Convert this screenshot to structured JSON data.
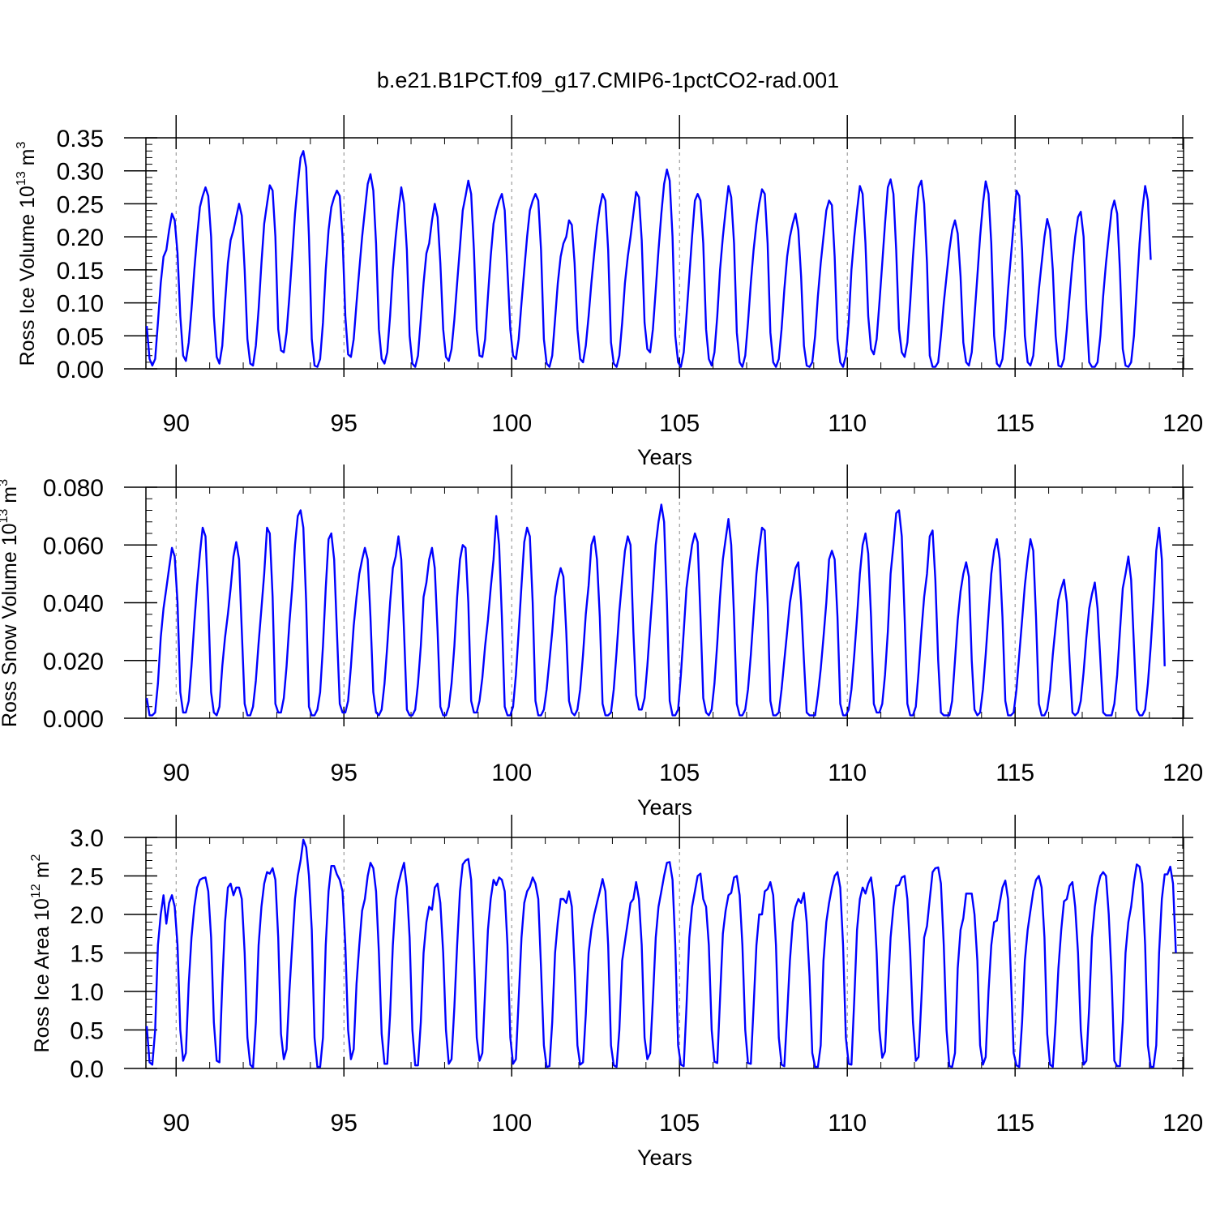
{
  "figure": {
    "title": "b.e21.B1PCT.f09_g17.CMIP6-1pctCO2-rad.001"
  },
  "chart_data": [
    {
      "type": "line",
      "name": "ice-volume",
      "xlabel": "Years",
      "ylabel_main": "Ross Ice Volume 10",
      "ylabel_exp": "13",
      "ylabel_unit": " m",
      "ylabel_unit_exp": "3",
      "xlim": [
        89.1,
        120.02
      ],
      "ylim": [
        0,
        0.35
      ],
      "x_ticks": [
        90,
        95,
        100,
        105,
        110,
        115,
        120
      ],
      "x_tick_labels": [
        "90",
        "95",
        "100",
        "105",
        "110",
        "115",
        "120"
      ],
      "y_ticks": [
        0,
        0.05,
        0.1,
        0.15,
        0.2,
        0.25,
        0.3,
        0.35
      ],
      "y_tick_labels": [
        "0.00",
        "0.05",
        "0.10",
        "0.15",
        "0.20",
        "0.25",
        "0.30",
        "0.35"
      ],
      "x_start": 89.125,
      "x_step": 0.08333,
      "color": "#0000ff",
      "values": [
        0.065,
        0.015,
        0.005,
        0.015,
        0.07,
        0.13,
        0.17,
        0.18,
        0.21,
        0.235,
        0.225,
        0.175,
        0.08,
        0.02,
        0.012,
        0.04,
        0.09,
        0.15,
        0.2,
        0.245,
        0.262,
        0.275,
        0.262,
        0.2,
        0.08,
        0.018,
        0.008,
        0.035,
        0.1,
        0.16,
        0.195,
        0.21,
        0.23,
        0.25,
        0.232,
        0.15,
        0.045,
        0.008,
        0.005,
        0.035,
        0.09,
        0.16,
        0.22,
        0.25,
        0.278,
        0.27,
        0.2,
        0.06,
        0.028,
        0.025,
        0.055,
        0.11,
        0.17,
        0.235,
        0.28,
        0.32,
        0.33,
        0.305,
        0.2,
        0.045,
        0.005,
        0.003,
        0.015,
        0.07,
        0.15,
        0.21,
        0.245,
        0.26,
        0.27,
        0.262,
        0.2,
        0.08,
        0.022,
        0.018,
        0.045,
        0.1,
        0.15,
        0.2,
        0.24,
        0.28,
        0.295,
        0.27,
        0.19,
        0.06,
        0.015,
        0.008,
        0.025,
        0.08,
        0.15,
        0.2,
        0.24,
        0.275,
        0.25,
        0.18,
        0.05,
        0.008,
        0.003,
        0.02,
        0.075,
        0.13,
        0.175,
        0.19,
        0.225,
        0.25,
        0.23,
        0.16,
        0.06,
        0.018,
        0.012,
        0.03,
        0.075,
        0.13,
        0.185,
        0.24,
        0.262,
        0.285,
        0.265,
        0.18,
        0.06,
        0.02,
        0.018,
        0.045,
        0.11,
        0.17,
        0.22,
        0.24,
        0.255,
        0.265,
        0.24,
        0.15,
        0.06,
        0.02,
        0.015,
        0.045,
        0.1,
        0.15,
        0.2,
        0.24,
        0.255,
        0.265,
        0.255,
        0.18,
        0.045,
        0.008,
        0.003,
        0.02,
        0.075,
        0.13,
        0.17,
        0.19,
        0.2,
        0.225,
        0.218,
        0.16,
        0.06,
        0.015,
        0.01,
        0.035,
        0.08,
        0.13,
        0.175,
        0.215,
        0.245,
        0.265,
        0.255,
        0.18,
        0.04,
        0.008,
        0.003,
        0.02,
        0.07,
        0.13,
        0.17,
        0.2,
        0.235,
        0.268,
        0.26,
        0.195,
        0.07,
        0.03,
        0.025,
        0.06,
        0.12,
        0.18,
        0.235,
        0.28,
        0.302,
        0.285,
        0.2,
        0.05,
        0.01,
        0.003,
        0.025,
        0.08,
        0.14,
        0.2,
        0.255,
        0.265,
        0.255,
        0.19,
        0.06,
        0.015,
        0.005,
        0.025,
        0.08,
        0.15,
        0.2,
        0.24,
        0.277,
        0.26,
        0.19,
        0.055,
        0.01,
        0.003,
        0.02,
        0.07,
        0.13,
        0.18,
        0.22,
        0.25,
        0.272,
        0.265,
        0.19,
        0.055,
        0.01,
        0.003,
        0.015,
        0.06,
        0.12,
        0.17,
        0.2,
        0.22,
        0.235,
        0.21,
        0.14,
        0.035,
        0.005,
        0.003,
        0.01,
        0.05,
        0.11,
        0.16,
        0.2,
        0.24,
        0.255,
        0.248,
        0.17,
        0.045,
        0.01,
        0.003,
        0.02,
        0.07,
        0.15,
        0.2,
        0.24,
        0.277,
        0.265,
        0.19,
        0.08,
        0.03,
        0.022,
        0.045,
        0.1,
        0.16,
        0.22,
        0.275,
        0.287,
        0.265,
        0.18,
        0.06,
        0.025,
        0.018,
        0.04,
        0.1,
        0.17,
        0.23,
        0.275,
        0.285,
        0.25,
        0.16,
        0.02,
        0.003,
        0.003,
        0.01,
        0.05,
        0.1,
        0.14,
        0.18,
        0.21,
        0.225,
        0.205,
        0.14,
        0.04,
        0.01,
        0.005,
        0.025,
        0.08,
        0.14,
        0.2,
        0.25,
        0.284,
        0.265,
        0.19,
        0.05,
        0.008,
        0.003,
        0.015,
        0.06,
        0.12,
        0.17,
        0.22,
        0.27,
        0.262,
        0.18,
        0.05,
        0.01,
        0.005,
        0.02,
        0.07,
        0.12,
        0.16,
        0.2,
        0.227,
        0.21,
        0.15,
        0.05,
        0.005,
        0.003,
        0.015,
        0.06,
        0.11,
        0.16,
        0.2,
        0.23,
        0.238,
        0.2,
        0.09,
        0.01,
        0.003,
        0.003,
        0.01,
        0.05,
        0.11,
        0.16,
        0.2,
        0.24,
        0.255,
        0.235,
        0.15,
        0.03,
        0.005,
        0.003,
        0.01,
        0.05,
        0.12,
        0.19,
        0.24,
        0.277,
        0.255,
        0.165
      ]
    },
    {
      "type": "line",
      "name": "snow-volume",
      "xlabel": "Years",
      "ylabel_main": "Ross Snow Volume 10",
      "ylabel_exp": "13",
      "ylabel_unit": " m",
      "ylabel_unit_exp": "3",
      "xlim": [
        89.1,
        120.02
      ],
      "ylim": [
        0,
        0.08
      ],
      "x_ticks": [
        90,
        95,
        100,
        105,
        110,
        115,
        120
      ],
      "x_tick_labels": [
        "90",
        "95",
        "100",
        "105",
        "110",
        "115",
        "120"
      ],
      "y_ticks": [
        0,
        0.02,
        0.04,
        0.06,
        0.08
      ],
      "y_tick_labels": [
        "0.000",
        "0.020",
        "0.040",
        "0.060",
        "0.080"
      ],
      "x_start": 89.125,
      "x_step": 0.08333,
      "color": "#0000ff",
      "values": [
        0.007,
        0.001,
        0.001,
        0.002,
        0.012,
        0.028,
        0.038,
        0.045,
        0.052,
        0.059,
        0.056,
        0.04,
        0.009,
        0.002,
        0.002,
        0.006,
        0.018,
        0.033,
        0.046,
        0.057,
        0.066,
        0.063,
        0.04,
        0.009,
        0.002,
        0.001,
        0.004,
        0.018,
        0.028,
        0.036,
        0.045,
        0.056,
        0.061,
        0.055,
        0.03,
        0.005,
        0.001,
        0.001,
        0.004,
        0.013,
        0.026,
        0.038,
        0.05,
        0.066,
        0.064,
        0.042,
        0.005,
        0.002,
        0.002,
        0.007,
        0.018,
        0.033,
        0.045,
        0.06,
        0.07,
        0.072,
        0.066,
        0.04,
        0.004,
        0.001,
        0.001,
        0.003,
        0.009,
        0.025,
        0.045,
        0.062,
        0.064,
        0.055,
        0.03,
        0.005,
        0.002,
        0.002,
        0.006,
        0.018,
        0.032,
        0.042,
        0.05,
        0.055,
        0.059,
        0.055,
        0.035,
        0.009,
        0.002,
        0.001,
        0.003,
        0.012,
        0.025,
        0.04,
        0.052,
        0.056,
        0.063,
        0.055,
        0.03,
        0.003,
        0.001,
        0.001,
        0.003,
        0.012,
        0.025,
        0.042,
        0.047,
        0.055,
        0.059,
        0.052,
        0.03,
        0.004,
        0.001,
        0.001,
        0.004,
        0.012,
        0.025,
        0.042,
        0.055,
        0.06,
        0.059,
        0.04,
        0.006,
        0.002,
        0.002,
        0.006,
        0.014,
        0.025,
        0.034,
        0.045,
        0.055,
        0.07,
        0.06,
        0.035,
        0.004,
        0.001,
        0.001,
        0.004,
        0.015,
        0.03,
        0.046,
        0.061,
        0.066,
        0.063,
        0.04,
        0.006,
        0.001,
        0.001,
        0.003,
        0.01,
        0.02,
        0.03,
        0.042,
        0.048,
        0.052,
        0.049,
        0.03,
        0.006,
        0.002,
        0.001,
        0.003,
        0.01,
        0.022,
        0.036,
        0.046,
        0.06,
        0.063,
        0.055,
        0.035,
        0.005,
        0.001,
        0.001,
        0.002,
        0.01,
        0.023,
        0.037,
        0.048,
        0.058,
        0.063,
        0.06,
        0.03,
        0.008,
        0.003,
        0.003,
        0.007,
        0.018,
        0.032,
        0.045,
        0.06,
        0.068,
        0.074,
        0.068,
        0.04,
        0.006,
        0.001,
        0.001,
        0.003,
        0.015,
        0.03,
        0.045,
        0.053,
        0.06,
        0.064,
        0.061,
        0.035,
        0.007,
        0.002,
        0.001,
        0.003,
        0.012,
        0.026,
        0.042,
        0.055,
        0.062,
        0.069,
        0.06,
        0.035,
        0.005,
        0.001,
        0.001,
        0.003,
        0.01,
        0.022,
        0.036,
        0.05,
        0.059,
        0.066,
        0.065,
        0.04,
        0.006,
        0.001,
        0.001,
        0.002,
        0.01,
        0.02,
        0.03,
        0.04,
        0.046,
        0.052,
        0.054,
        0.04,
        0.02,
        0.002,
        0.001,
        0.001,
        0.001,
        0.008,
        0.017,
        0.028,
        0.04,
        0.055,
        0.058,
        0.055,
        0.035,
        0.005,
        0.001,
        0.001,
        0.003,
        0.01,
        0.022,
        0.035,
        0.05,
        0.06,
        0.064,
        0.057,
        0.035,
        0.005,
        0.002,
        0.002,
        0.005,
        0.015,
        0.03,
        0.05,
        0.06,
        0.071,
        0.072,
        0.063,
        0.035,
        0.005,
        0.001,
        0.001,
        0.004,
        0.016,
        0.03,
        0.042,
        0.05,
        0.063,
        0.065,
        0.048,
        0.02,
        0.002,
        0.001,
        0.001,
        0.001,
        0.006,
        0.02,
        0.034,
        0.044,
        0.05,
        0.054,
        0.049,
        0.02,
        0.003,
        0.001,
        0.002,
        0.01,
        0.022,
        0.036,
        0.05,
        0.058,
        0.062,
        0.055,
        0.035,
        0.006,
        0.001,
        0.001,
        0.002,
        0.01,
        0.022,
        0.034,
        0.046,
        0.055,
        0.062,
        0.058,
        0.035,
        0.005,
        0.001,
        0.001,
        0.003,
        0.01,
        0.022,
        0.032,
        0.041,
        0.045,
        0.048,
        0.04,
        0.02,
        0.002,
        0.001,
        0.002,
        0.006,
        0.016,
        0.028,
        0.038,
        0.043,
        0.047,
        0.038,
        0.02,
        0.002,
        0.001,
        0.001,
        0.001,
        0.005,
        0.015,
        0.03,
        0.045,
        0.05,
        0.056,
        0.048,
        0.025,
        0.003,
        0.001,
        0.001,
        0.003,
        0.012,
        0.025,
        0.04,
        0.058,
        0.066,
        0.055,
        0.018
      ]
    },
    {
      "type": "line",
      "name": "ice-area",
      "xlabel": "Years",
      "ylabel_main": "Ross Ice Area 10",
      "ylabel_exp": "12",
      "ylabel_unit": " m",
      "ylabel_unit_exp": "2",
      "xlim": [
        89.1,
        120.02
      ],
      "ylim": [
        0,
        3.0
      ],
      "x_ticks": [
        90,
        95,
        100,
        105,
        110,
        115,
        120
      ],
      "x_tick_labels": [
        "90",
        "95",
        "100",
        "105",
        "110",
        "115",
        "120"
      ],
      "y_ticks": [
        0,
        0.5,
        1.0,
        1.5,
        2.0,
        2.5,
        3.0
      ],
      "y_tick_labels": [
        "0.0",
        "0.5",
        "1.0",
        "1.5",
        "2.0",
        "2.5",
        "3.0"
      ],
      "x_start": 89.125,
      "x_step": 0.08333,
      "color": "#0000ff",
      "values": [
        0.55,
        0.08,
        0.05,
        0.5,
        1.6,
        2.0,
        2.25,
        1.88,
        2.15,
        2.25,
        2.1,
        1.6,
        0.5,
        0.1,
        0.2,
        1.1,
        1.7,
        2.1,
        2.35,
        2.45,
        2.47,
        2.48,
        2.3,
        1.7,
        0.6,
        0.1,
        0.08,
        1.1,
        1.9,
        2.35,
        2.4,
        2.25,
        2.35,
        2.35,
        2.2,
        1.5,
        0.4,
        0.05,
        0.01,
        0.6,
        1.6,
        2.1,
        2.4,
        2.55,
        2.53,
        2.6,
        2.45,
        1.7,
        0.45,
        0.12,
        0.25,
        1.0,
        1.6,
        2.2,
        2.5,
        2.7,
        2.97,
        2.87,
        2.5,
        1.8,
        0.4,
        0.02,
        0.02,
        0.4,
        1.6,
        2.3,
        2.63,
        2.63,
        2.52,
        2.45,
        2.3,
        1.6,
        0.5,
        0.12,
        0.25,
        1.1,
        1.6,
        2.05,
        2.2,
        2.5,
        2.67,
        2.6,
        2.3,
        1.5,
        0.45,
        0.06,
        0.06,
        0.7,
        1.6,
        2.2,
        2.4,
        2.55,
        2.67,
        2.35,
        1.7,
        0.5,
        0.04,
        0.04,
        0.6,
        1.5,
        1.9,
        2.1,
        2.06,
        2.35,
        2.4,
        2.15,
        1.5,
        0.5,
        0.06,
        0.12,
        0.8,
        1.6,
        2.3,
        2.65,
        2.7,
        2.72,
        2.45,
        1.5,
        0.4,
        0.1,
        0.2,
        1.0,
        1.8,
        2.2,
        2.45,
        2.38,
        2.48,
        2.45,
        2.3,
        1.6,
        0.4,
        0.06,
        0.12,
        0.9,
        1.7,
        2.15,
        2.3,
        2.36,
        2.48,
        2.4,
        2.2,
        1.3,
        0.3,
        0.02,
        0.03,
        0.6,
        1.5,
        1.9,
        2.2,
        2.2,
        2.15,
        2.3,
        2.1,
        1.3,
        0.3,
        0.05,
        0.08,
        0.7,
        1.5,
        1.8,
        2.0,
        2.15,
        2.3,
        2.46,
        2.3,
        1.6,
        0.3,
        0.04,
        0.02,
        0.5,
        1.4,
        1.65,
        1.9,
        2.15,
        2.2,
        2.42,
        2.2,
        1.6,
        0.4,
        0.12,
        0.2,
        0.9,
        1.7,
        2.1,
        2.3,
        2.5,
        2.67,
        2.68,
        2.45,
        1.6,
        0.3,
        0.05,
        0.03,
        0.8,
        1.7,
        2.1,
        2.3,
        2.5,
        2.53,
        2.2,
        2.1,
        1.6,
        0.5,
        0.09,
        0.07,
        0.9,
        1.75,
        2.05,
        2.25,
        2.28,
        2.48,
        2.5,
        2.25,
        1.6,
        0.5,
        0.07,
        0.06,
        0.8,
        1.6,
        2.0,
        2.0,
        2.3,
        2.33,
        2.42,
        2.25,
        1.6,
        0.4,
        0.05,
        0.03,
        0.7,
        1.4,
        1.9,
        2.1,
        2.2,
        2.15,
        2.28,
        1.9,
        1.2,
        0.2,
        0.02,
        0.02,
        0.3,
        1.4,
        1.9,
        2.15,
        2.35,
        2.5,
        2.55,
        2.35,
        1.6,
        0.4,
        0.06,
        0.05,
        0.9,
        1.8,
        2.2,
        2.35,
        2.27,
        2.4,
        2.48,
        2.2,
        1.5,
        0.5,
        0.14,
        0.22,
        1.0,
        1.7,
        2.1,
        2.37,
        2.38,
        2.48,
        2.5,
        2.2,
        1.5,
        0.6,
        0.1,
        0.15,
        0.9,
        1.7,
        1.85,
        2.2,
        2.55,
        2.6,
        2.61,
        2.4,
        1.6,
        0.5,
        0.03,
        0.02,
        0.2,
        1.3,
        1.8,
        1.95,
        2.27,
        2.27,
        2.27,
        2.0,
        1.4,
        0.3,
        0.05,
        0.15,
        1.0,
        1.6,
        1.9,
        1.92,
        2.15,
        2.35,
        2.44,
        2.2,
        1.2,
        0.2,
        0.04,
        0.02,
        0.6,
        1.4,
        1.8,
        2.05,
        2.3,
        2.45,
        2.5,
        2.35,
        1.7,
        0.45,
        0.05,
        0.02,
        0.6,
        1.3,
        1.8,
        2.17,
        2.2,
        2.37,
        2.42,
        2.1,
        1.5,
        0.5,
        0.05,
        0.1,
        0.8,
        1.7,
        2.1,
        2.35,
        2.5,
        2.55,
        2.5,
        2.0,
        1.2,
        0.1,
        0.03,
        0.03,
        0.6,
        1.5,
        1.9,
        2.1,
        2.42,
        2.65,
        2.62,
        2.4,
        1.6,
        0.3,
        0.02,
        0.02,
        0.3,
        1.5,
        2.2,
        2.52,
        2.52,
        2.62,
        2.4,
        1.5
      ]
    }
  ]
}
